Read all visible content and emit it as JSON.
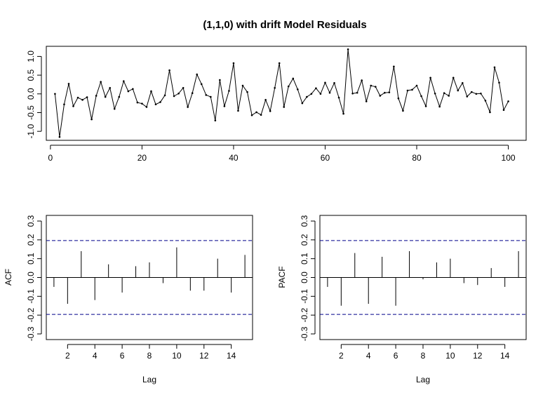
{
  "chart_data": [
    {
      "type": "line",
      "title": "(1,1,0) with drift Model Residuals",
      "xlabel": "",
      "ylabel": "",
      "xlim": [
        -0.9,
        103.9
      ],
      "ylim": [
        -1.24,
        1.27
      ],
      "x_ticks": [
        0,
        20,
        40,
        60,
        80,
        100
      ],
      "y_ticks": [
        -1.0,
        -0.5,
        0.0,
        0.5,
        1.0
      ],
      "y_tick_labels": [
        "-1.0",
        "-0.5",
        "0.0",
        "0.5",
        "1.0"
      ],
      "x": [
        1,
        2,
        3,
        4,
        5,
        6,
        7,
        8,
        9,
        10,
        11,
        12,
        13,
        14,
        15,
        16,
        17,
        18,
        19,
        20,
        21,
        22,
        23,
        24,
        25,
        26,
        27,
        28,
        29,
        30,
        31,
        32,
        33,
        34,
        35,
        36,
        37,
        38,
        39,
        40,
        41,
        42,
        43,
        44,
        45,
        46,
        47,
        48,
        49,
        50,
        51,
        52,
        53,
        54,
        55,
        56,
        57,
        58,
        59,
        60,
        61,
        62,
        63,
        64,
        65,
        66,
        67,
        68,
        69,
        70,
        71,
        72,
        73,
        74,
        75,
        76,
        77,
        78,
        79,
        80,
        81,
        82,
        83,
        84,
        85,
        86,
        87,
        88,
        89,
        90,
        91,
        92,
        93,
        94,
        95,
        96,
        97,
        98,
        99,
        100
      ],
      "values": [
        0.0,
        -1.15,
        -0.28,
        0.27,
        -0.33,
        -0.1,
        -0.16,
        -0.09,
        -0.68,
        -0.05,
        0.32,
        -0.08,
        0.16,
        -0.4,
        -0.08,
        0.34,
        0.07,
        0.13,
        -0.23,
        -0.26,
        -0.35,
        0.07,
        -0.28,
        -0.22,
        -0.04,
        0.63,
        -0.06,
        0.01,
        0.16,
        -0.35,
        0.02,
        0.52,
        0.26,
        -0.03,
        -0.08,
        -0.71,
        0.37,
        -0.33,
        0.08,
        0.82,
        -0.45,
        0.22,
        0.05,
        -0.57,
        -0.49,
        -0.56,
        -0.16,
        -0.46,
        0.16,
        0.82,
        -0.35,
        0.2,
        0.41,
        0.12,
        -0.25,
        -0.08,
        0.0,
        0.15,
        0.0,
        0.3,
        0.03,
        0.29,
        -0.1,
        -0.53,
        1.19,
        0.01,
        0.03,
        0.36,
        -0.2,
        0.22,
        0.19,
        -0.05,
        0.03,
        0.04,
        0.73,
        -0.12,
        -0.45,
        0.09,
        0.11,
        0.22,
        -0.06,
        -0.33,
        0.43,
        0.01,
        -0.34,
        0.02,
        -0.05,
        0.43,
        0.09,
        0.29,
        -0.07,
        0.05,
        0.0,
        0.01,
        -0.18,
        -0.49,
        0.71,
        0.3,
        -0.43,
        -0.2
      ]
    },
    {
      "type": "bar",
      "title": "",
      "xlabel": "Lag",
      "ylabel": "ACF",
      "xlim": [
        0.44,
        15.56
      ],
      "ylim": [
        -0.33,
        0.33
      ],
      "x_ticks": [
        2,
        4,
        6,
        8,
        10,
        12,
        14
      ],
      "y_ticks": [
        -0.3,
        -0.2,
        -0.1,
        0.0,
        0.1,
        0.2,
        0.3
      ],
      "y_tick_labels": [
        "-0.3",
        "-0.2",
        "-0.1",
        "0.0",
        "0.1",
        "0.2",
        "0.3"
      ],
      "conf_limit": 0.196,
      "categories": [
        1,
        2,
        3,
        4,
        5,
        6,
        7,
        8,
        9,
        10,
        11,
        12,
        13,
        14,
        15
      ],
      "values": [
        -0.05,
        -0.14,
        0.14,
        -0.12,
        0.07,
        -0.08,
        0.06,
        0.08,
        -0.03,
        0.16,
        -0.07,
        -0.07,
        0.1,
        -0.08,
        0.12
      ]
    },
    {
      "type": "bar",
      "title": "",
      "xlabel": "Lag",
      "ylabel": "PACF",
      "xlim": [
        0.44,
        15.56
      ],
      "ylim": [
        -0.33,
        0.33
      ],
      "x_ticks": [
        2,
        4,
        6,
        8,
        10,
        12,
        14
      ],
      "y_ticks": [
        -0.3,
        -0.2,
        -0.1,
        0.0,
        0.1,
        0.2,
        0.3
      ],
      "y_tick_labels": [
        "-0.3",
        "-0.2",
        "-0.1",
        "0.0",
        "0.1",
        "0.2",
        "0.3"
      ],
      "conf_limit": 0.196,
      "categories": [
        1,
        2,
        3,
        4,
        5,
        6,
        7,
        8,
        9,
        10,
        11,
        12,
        13,
        14,
        15
      ],
      "values": [
        -0.05,
        -0.15,
        0.13,
        -0.14,
        0.11,
        -0.15,
        0.14,
        -0.01,
        0.08,
        0.1,
        -0.03,
        -0.04,
        0.05,
        -0.05,
        0.14
      ]
    }
  ],
  "colors": {
    "series": "#000000",
    "conf_line": "#00008B",
    "frame": "#000000"
  }
}
